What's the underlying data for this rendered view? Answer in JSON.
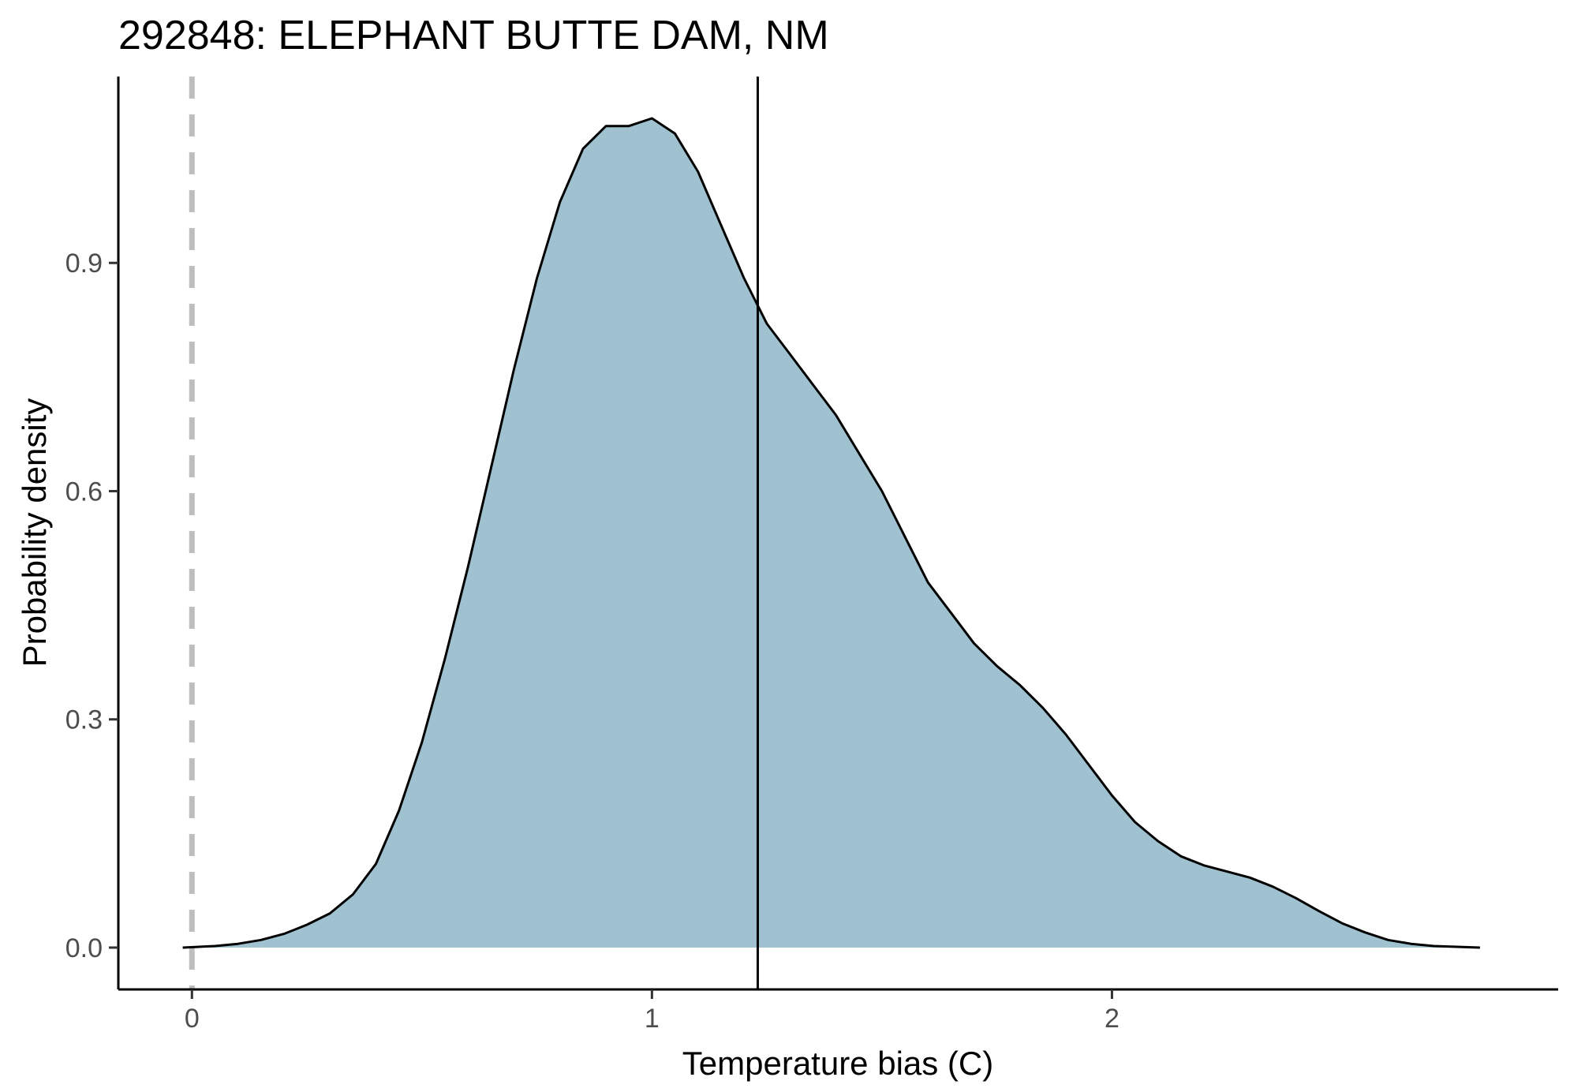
{
  "chart_data": {
    "type": "area",
    "title": "292848: ELEPHANT BUTTE DAM, NM",
    "xlabel": "Temperature bias (C)",
    "ylabel": "Probability density",
    "xlim": [
      -0.16,
      2.97
    ],
    "ylim": [
      -0.055,
      1.145
    ],
    "x_ticks": [
      0,
      1,
      2
    ],
    "y_ticks": [
      0.0,
      0.3,
      0.6,
      0.9
    ],
    "y_tick_labels": [
      "0.0",
      "0.3",
      "0.6",
      "0.9"
    ],
    "x_tick_labels": [
      "0",
      "1",
      "2"
    ],
    "grid": false,
    "legend": "none",
    "fill_color": "#a0c1d0",
    "line_color": "#000000",
    "reference_lines": [
      {
        "x": 0,
        "style": "dashed",
        "color": "#bebebe"
      },
      {
        "x": 1.23,
        "style": "solid",
        "color": "#000000"
      }
    ],
    "density": {
      "x": [
        -0.02,
        0.05,
        0.1,
        0.15,
        0.2,
        0.25,
        0.3,
        0.35,
        0.4,
        0.45,
        0.5,
        0.55,
        0.6,
        0.65,
        0.7,
        0.75,
        0.8,
        0.85,
        0.9,
        0.95,
        1.0,
        1.05,
        1.1,
        1.15,
        1.2,
        1.25,
        1.3,
        1.35,
        1.4,
        1.45,
        1.5,
        1.55,
        1.6,
        1.65,
        1.7,
        1.75,
        1.8,
        1.85,
        1.9,
        1.95,
        2.0,
        2.05,
        2.1,
        2.15,
        2.2,
        2.25,
        2.3,
        2.35,
        2.4,
        2.45,
        2.5,
        2.55,
        2.6,
        2.65,
        2.7,
        2.75,
        2.8
      ],
      "y": [
        0.0,
        0.002,
        0.005,
        0.01,
        0.018,
        0.03,
        0.045,
        0.07,
        0.11,
        0.18,
        0.27,
        0.38,
        0.5,
        0.63,
        0.76,
        0.88,
        0.98,
        1.05,
        1.08,
        1.08,
        1.09,
        1.07,
        1.02,
        0.95,
        0.88,
        0.82,
        0.78,
        0.74,
        0.7,
        0.65,
        0.6,
        0.54,
        0.48,
        0.44,
        0.4,
        0.37,
        0.345,
        0.315,
        0.28,
        0.24,
        0.2,
        0.165,
        0.14,
        0.12,
        0.108,
        0.1,
        0.092,
        0.08,
        0.065,
        0.048,
        0.032,
        0.02,
        0.01,
        0.005,
        0.002,
        0.001,
        0.0
      ]
    }
  }
}
